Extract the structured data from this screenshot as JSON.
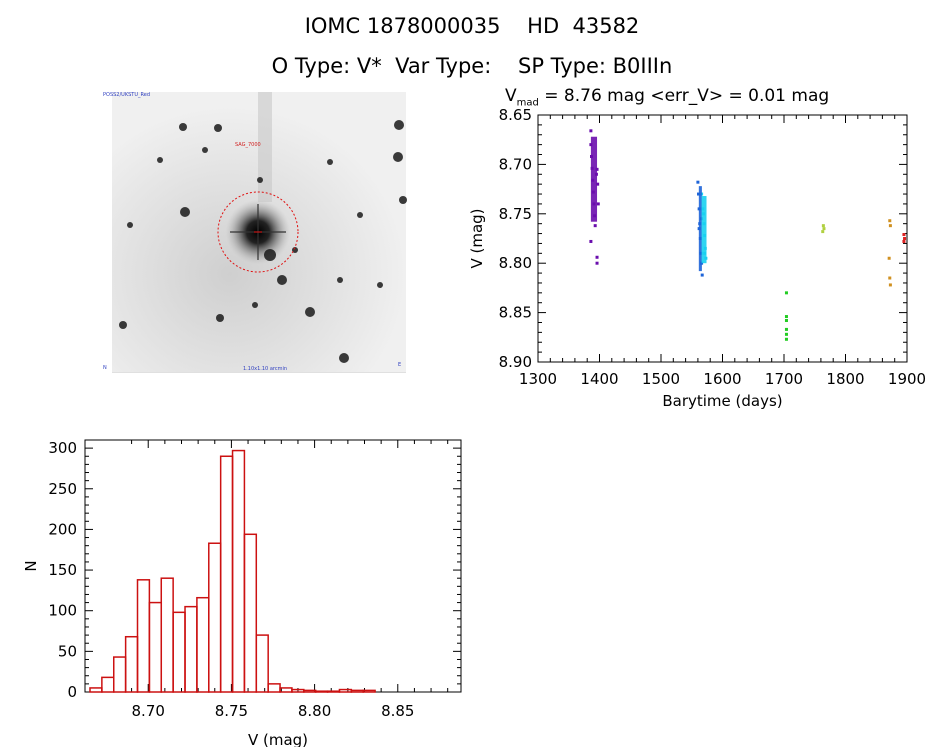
{
  "header": {
    "line1": "IOMC 1878000035    HD  43582",
    "line2": "O Type: V*  Var Type:    SP Type: B0IIIn"
  },
  "image_panel": {
    "stamp_top_left": "POSS2/UKSTU_Red",
    "stamp_label": "SAG_7000",
    "stamp_bottom_left": "N",
    "stamp_bottom_center": "1.10x1.10 arcmin",
    "stamp_bottom_right": "E"
  },
  "lightcurve": {
    "title_prefix": "V",
    "title_sub": "mad",
    "title_rest": " = 8.76 mag <err_V> = 0.01 mag"
  },
  "colors": {
    "purple": "#6a0dad",
    "blue": "#1e64d8",
    "cyan": "#18d0f0",
    "green": "#22cc22",
    "yellowgreen": "#b0d040",
    "orange": "#d09020",
    "red": "#dd2222",
    "hist": "#cc1111"
  },
  "chart_data": [
    {
      "type": "scatter",
      "title": "Vmad = 8.76 mag <err_V> = 0.01 mag",
      "xlabel": "Barytime (days)",
      "ylabel": "V (mag)",
      "xlim": [
        1300,
        1900
      ],
      "ylim": [
        8.9,
        8.65
      ],
      "y_inverted": true,
      "x_ticks": [
        1300,
        1400,
        1500,
        1600,
        1700,
        1800,
        1900
      ],
      "x_tick_labels": [
        "1300",
        "1400",
        "1500",
        "1600",
        "1700",
        "1800",
        "1900"
      ],
      "y_ticks": [
        8.65,
        8.7,
        8.75,
        8.8,
        8.85,
        8.9
      ],
      "y_tick_labels": [
        "8.65",
        "8.70",
        "8.75",
        "8.80",
        "8.85",
        "8.90"
      ],
      "series": [
        {
          "color": "purple",
          "points": [
            [
              1386,
              8.666
            ],
            [
              1386,
              8.68
            ],
            [
              1387,
              8.692
            ],
            [
              1388,
              8.704
            ],
            [
              1389,
              8.716
            ],
            [
              1390,
              8.728
            ],
            [
              1391,
              8.74
            ],
            [
              1392,
              8.752
            ],
            [
              1393,
              8.762
            ],
            [
              1395,
              8.71
            ],
            [
              1396,
              8.705
            ],
            [
              1397,
              8.72
            ],
            [
              1398,
              8.74
            ],
            [
              1386,
              8.778
            ],
            [
              1396,
              8.794
            ],
            [
              1396,
              8.8
            ]
          ]
        },
        {
          "color": "blue",
          "points": [
            [
              1560,
              8.718
            ],
            [
              1561,
              8.73
            ],
            [
              1562,
              8.745
            ],
            [
              1563,
              8.76
            ],
            [
              1564,
              8.775
            ],
            [
              1565,
              8.79
            ],
            [
              1566,
              8.8
            ],
            [
              1567,
              8.812
            ],
            [
              1562,
              8.765
            ],
            [
              1566,
              8.755
            ]
          ]
        },
        {
          "color": "cyan",
          "points": [
            [
              1566,
              8.73
            ],
            [
              1568,
              8.745
            ],
            [
              1570,
              8.76
            ],
            [
              1571,
              8.772
            ],
            [
              1572,
              8.785
            ],
            [
              1573,
              8.795
            ],
            [
              1569,
              8.75
            ],
            [
              1571,
              8.79
            ]
          ]
        },
        {
          "color": "green",
          "points": [
            [
              1704,
              8.83
            ],
            [
              1704,
              8.854
            ],
            [
              1704,
              8.858
            ],
            [
              1704,
              8.867
            ],
            [
              1704,
              8.872
            ],
            [
              1704,
              8.877
            ]
          ]
        },
        {
          "color": "yellowgreen",
          "points": [
            [
              1764,
              8.762
            ],
            [
              1765,
              8.765
            ],
            [
              1763,
              8.768
            ]
          ]
        },
        {
          "color": "orange",
          "points": [
            [
              1872,
              8.757
            ],
            [
              1873,
              8.762
            ],
            [
              1871,
              8.795
            ],
            [
              1872,
              8.815
            ],
            [
              1873,
              8.822
            ]
          ]
        },
        {
          "color": "red",
          "points": [
            [
              1895,
              8.771
            ],
            [
              1896,
              8.775
            ],
            [
              1895,
              8.778
            ]
          ]
        }
      ]
    },
    {
      "type": "bar",
      "title": "",
      "xlabel": "V (mag)",
      "ylabel": "N",
      "xlim": [
        8.662,
        8.888
      ],
      "ylim": [
        0,
        310
      ],
      "x_ticks": [
        8.7,
        8.75,
        8.8,
        8.85
      ],
      "x_tick_labels": [
        "8.70",
        "8.75",
        "8.80",
        "8.85"
      ],
      "y_ticks": [
        0,
        50,
        100,
        150,
        200,
        250,
        300
      ],
      "y_tick_labels": [
        "0",
        "50",
        "100",
        "150",
        "200",
        "250",
        "300"
      ],
      "bin_start": 8.665,
      "bin_width": 0.00714,
      "values": [
        5,
        18,
        43,
        68,
        138,
        110,
        140,
        98,
        105,
        116,
        183,
        290,
        297,
        194,
        70,
        10,
        5,
        3,
        2,
        1,
        1,
        3,
        2,
        2
      ]
    }
  ]
}
